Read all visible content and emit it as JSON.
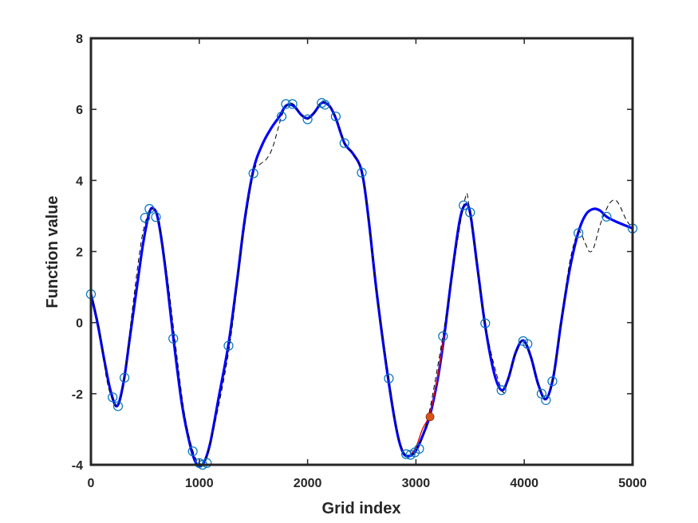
{
  "chart_data": {
    "type": "line",
    "title": "",
    "xlabel": "Grid index",
    "ylabel": "Function value",
    "xlim": [
      0,
      5000
    ],
    "ylim": [
      -4,
      8
    ],
    "x_ticks": [
      0,
      1000,
      2000,
      3000,
      4000,
      5000
    ],
    "y_ticks": [
      -4,
      -2,
      0,
      2,
      4,
      6,
      8
    ],
    "x_tick_labels": [
      "0",
      "1000",
      "2000",
      "3000",
      "4000",
      "5000"
    ],
    "y_tick_labels": [
      "-4",
      "-2",
      "0",
      "2",
      "4",
      "6",
      "8"
    ],
    "grid": false,
    "legend": "none",
    "colors": {
      "true_function": "#0000ff",
      "red_curve": "#e60000",
      "dashed_curve": "#000000",
      "samples": "#0072bd",
      "highlight": "#d95319"
    },
    "series": [
      {
        "style": "solid-thick-blue",
        "points": [
          [
            0,
            0.8
          ],
          [
            60,
            0.0
          ],
          [
            120,
            -1.0
          ],
          [
            180,
            -1.9
          ],
          [
            240,
            -2.35
          ],
          [
            300,
            -1.7
          ],
          [
            360,
            -0.4
          ],
          [
            420,
            0.9
          ],
          [
            480,
            2.2
          ],
          [
            540,
            3.1
          ],
          [
            580,
            3.2
          ],
          [
            620,
            2.9
          ],
          [
            680,
            1.7
          ],
          [
            760,
            -0.4
          ],
          [
            840,
            -2.3
          ],
          [
            920,
            -3.5
          ],
          [
            980,
            -4.0
          ],
          [
            1040,
            -3.95
          ],
          [
            1100,
            -3.4
          ],
          [
            1180,
            -2.1
          ],
          [
            1270,
            -0.6
          ],
          [
            1350,
            1.2
          ],
          [
            1420,
            2.9
          ],
          [
            1500,
            4.3
          ],
          [
            1580,
            5.0
          ],
          [
            1660,
            5.45
          ],
          [
            1740,
            5.8
          ],
          [
            1800,
            6.1
          ],
          [
            1870,
            6.1
          ],
          [
            1940,
            5.85
          ],
          [
            2000,
            5.75
          ],
          [
            2060,
            5.9
          ],
          [
            2130,
            6.18
          ],
          [
            2200,
            6.1
          ],
          [
            2260,
            5.75
          ],
          [
            2340,
            5.05
          ],
          [
            2420,
            4.75
          ],
          [
            2500,
            4.25
          ],
          [
            2560,
            3.0
          ],
          [
            2640,
            0.8
          ],
          [
            2740,
            -1.5
          ],
          [
            2820,
            -3.0
          ],
          [
            2880,
            -3.65
          ],
          [
            2940,
            -3.75
          ],
          [
            3000,
            -3.6
          ],
          [
            3060,
            -3.2
          ],
          [
            3130,
            -2.6
          ],
          [
            3200,
            -1.6
          ],
          [
            3260,
            -0.4
          ],
          [
            3330,
            1.3
          ],
          [
            3400,
            2.8
          ],
          [
            3450,
            3.3
          ],
          [
            3500,
            3.1
          ],
          [
            3570,
            1.5
          ],
          [
            3640,
            -0.1
          ],
          [
            3720,
            -1.4
          ],
          [
            3790,
            -1.9
          ],
          [
            3850,
            -1.6
          ],
          [
            3920,
            -0.85
          ],
          [
            3990,
            -0.5
          ],
          [
            4060,
            -0.95
          ],
          [
            4130,
            -1.75
          ],
          [
            4200,
            -2.15
          ],
          [
            4270,
            -1.5
          ],
          [
            4340,
            0.0
          ],
          [
            4420,
            1.5
          ],
          [
            4500,
            2.55
          ],
          [
            4570,
            3.05
          ],
          [
            4640,
            3.2
          ],
          [
            4700,
            3.15
          ],
          [
            4760,
            2.98
          ],
          [
            4840,
            2.85
          ],
          [
            4920,
            2.75
          ],
          [
            5000,
            2.65
          ]
        ]
      },
      {
        "style": "thin-red",
        "points": [
          [
            2940,
            -3.74
          ],
          [
            3000,
            -3.5
          ],
          [
            3060,
            -3.0
          ],
          [
            3130,
            -2.55
          ],
          [
            3200,
            -1.55
          ],
          [
            3260,
            -0.38
          ]
        ]
      },
      {
        "style": "dashed-black",
        "points": [
          [
            0,
            0.8
          ],
          [
            60,
            0.1
          ],
          [
            100,
            -0.6
          ],
          [
            140,
            -1.5
          ],
          [
            190,
            -2.1
          ],
          [
            250,
            -2.35
          ],
          [
            310,
            -1.55
          ],
          [
            380,
            0.3
          ],
          [
            460,
            2.2
          ],
          [
            520,
            3.0
          ],
          [
            560,
            3.2
          ],
          [
            620,
            2.95
          ],
          [
            700,
            1.4
          ],
          [
            780,
            -0.6
          ],
          [
            860,
            -2.5
          ],
          [
            940,
            -3.6
          ],
          [
            1000,
            -3.95
          ],
          [
            1060,
            -3.85
          ],
          [
            1140,
            -2.9
          ],
          [
            1280,
            -0.65
          ],
          [
            1400,
            2.3
          ],
          [
            1500,
            4.2
          ],
          [
            1560,
            4.45
          ],
          [
            1620,
            4.6
          ],
          [
            1680,
            4.95
          ],
          [
            1760,
            5.8
          ],
          [
            1820,
            6.15
          ],
          [
            1880,
            6.12
          ],
          [
            1940,
            5.85
          ],
          [
            2000,
            5.72
          ],
          [
            2060,
            5.9
          ],
          [
            2130,
            6.2
          ],
          [
            2200,
            6.1
          ],
          [
            2260,
            5.8
          ],
          [
            2340,
            5.05
          ],
          [
            2420,
            4.75
          ],
          [
            2500,
            4.25
          ],
          [
            2560,
            3.0
          ],
          [
            2640,
            0.8
          ],
          [
            2750,
            -1.55
          ],
          [
            2830,
            -3.1
          ],
          [
            2900,
            -3.7
          ],
          [
            2960,
            -3.72
          ],
          [
            3010,
            -3.5
          ],
          [
            3100,
            -2.85
          ],
          [
            3250,
            -0.35
          ],
          [
            3440,
            3.3
          ],
          [
            3500,
            3.1
          ],
          [
            3640,
            -0.05
          ],
          [
            3790,
            -1.88
          ],
          [
            3850,
            -1.6
          ],
          [
            3920,
            -0.85
          ],
          [
            3990,
            -0.5
          ],
          [
            4060,
            -0.95
          ],
          [
            4130,
            -1.75
          ],
          [
            4200,
            -2.15
          ],
          [
            4260,
            -1.65
          ],
          [
            4340,
            0.0
          ],
          [
            4420,
            1.7
          ],
          [
            4500,
            2.55
          ],
          [
            4560,
            2.25
          ],
          [
            4600,
            2.0
          ],
          [
            4640,
            2.1
          ],
          [
            4700,
            2.75
          ],
          [
            4760,
            3.2
          ],
          [
            4800,
            3.4
          ],
          [
            4840,
            3.45
          ],
          [
            4880,
            3.3
          ],
          [
            4940,
            2.9
          ],
          [
            5000,
            2.65
          ]
        ]
      }
    ],
    "samples": [
      [
        0,
        0.8
      ],
      [
        200,
        -2.1
      ],
      [
        250,
        -2.35
      ],
      [
        310,
        -1.55
      ],
      [
        500,
        2.95
      ],
      [
        540,
        3.2
      ],
      [
        600,
        2.97
      ],
      [
        760,
        -0.45
      ],
      [
        940,
        -3.62
      ],
      [
        1000,
        -3.95
      ],
      [
        1030,
        -4.0
      ],
      [
        1070,
        -3.95
      ],
      [
        1270,
        -0.65
      ],
      [
        1500,
        4.2
      ],
      [
        1760,
        5.8
      ],
      [
        1800,
        6.15
      ],
      [
        1860,
        6.15
      ],
      [
        2000,
        5.72
      ],
      [
        2130,
        6.18
      ],
      [
        2160,
        6.13
      ],
      [
        2260,
        5.8
      ],
      [
        2340,
        5.05
      ],
      [
        2500,
        4.22
      ],
      [
        2750,
        -1.57
      ],
      [
        2910,
        -3.7
      ],
      [
        2950,
        -3.72
      ],
      [
        2990,
        -3.65
      ],
      [
        3030,
        -3.55
      ],
      [
        3250,
        -0.38
      ],
      [
        3440,
        3.3
      ],
      [
        3500,
        3.1
      ],
      [
        3640,
        -0.02
      ],
      [
        3790,
        -1.9
      ],
      [
        3990,
        -0.52
      ],
      [
        4030,
        -0.6
      ],
      [
        4160,
        -2.0
      ],
      [
        4200,
        -2.18
      ],
      [
        4260,
        -1.65
      ],
      [
        4500,
        2.52
      ],
      [
        4760,
        2.98
      ],
      [
        5000,
        2.65
      ]
    ],
    "highlight_point": [
      3130,
      -2.65
    ]
  }
}
